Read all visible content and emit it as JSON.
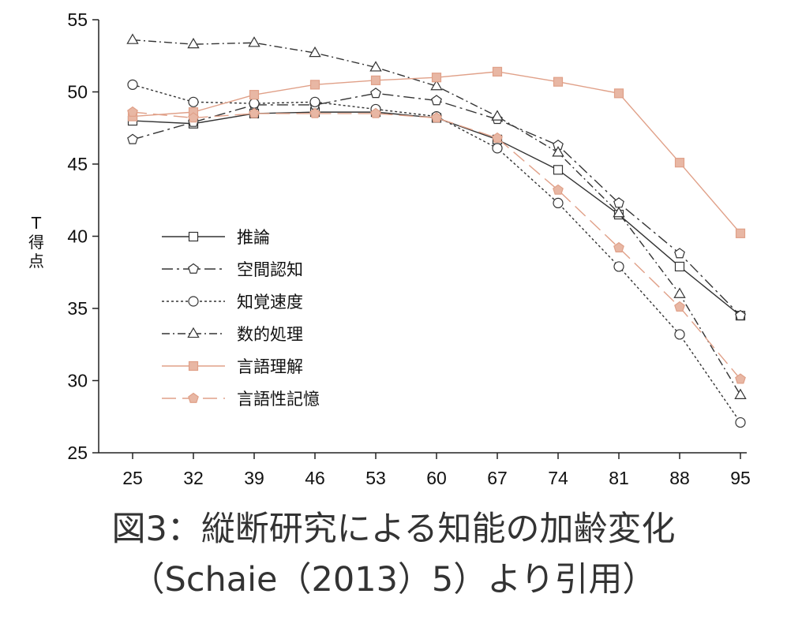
{
  "caption": {
    "line1": "図3：縦断研究による知能の加齢変化",
    "line2": "（Schaie（2013）5）より引用）"
  },
  "chart_data": {
    "type": "line",
    "ylabel": "T得点",
    "ylabel_chars": [
      "T",
      "得",
      "点"
    ],
    "xlabel": "",
    "x": [
      25,
      32,
      39,
      46,
      53,
      60,
      67,
      74,
      81,
      88,
      95
    ],
    "yticks": [
      25,
      30,
      35,
      40,
      45,
      50,
      55
    ],
    "ylim": [
      25,
      55
    ],
    "grid": false,
    "legend_position": "left-center",
    "series": [
      {
        "name": "推論",
        "marker": "square",
        "color": "#333333",
        "fill": "#ffffff",
        "dash": "",
        "values": [
          48.0,
          47.8,
          48.5,
          48.6,
          48.6,
          48.2,
          46.7,
          44.6,
          41.5,
          37.9,
          34.5
        ]
      },
      {
        "name": "空間認知",
        "marker": "pentagon",
        "color": "#333333",
        "fill": "#ffffff",
        "dash": "14,5,3,5",
        "values": [
          46.7,
          47.9,
          49.1,
          49.1,
          49.9,
          49.4,
          48.1,
          46.3,
          42.3,
          38.8,
          34.5
        ]
      },
      {
        "name": "知覚速度",
        "marker": "circle",
        "color": "#333333",
        "fill": "#ffffff",
        "dash": "3,3",
        "values": [
          50.5,
          49.3,
          49.2,
          49.3,
          48.8,
          48.3,
          46.1,
          42.3,
          37.9,
          33.2,
          27.1
        ]
      },
      {
        "name": "数的処理",
        "marker": "triangle",
        "color": "#333333",
        "fill": "#ffffff",
        "dash": "10,4,2,4",
        "values": [
          53.6,
          53.3,
          53.4,
          52.7,
          51.7,
          50.4,
          48.3,
          45.8,
          41.6,
          36.0,
          29.0
        ]
      },
      {
        "name": "言語理解",
        "marker": "square",
        "color": "#e0a088",
        "fill": "#e8b7a4",
        "dash": "",
        "values": [
          48.3,
          48.6,
          49.8,
          50.5,
          50.8,
          51.0,
          51.4,
          50.7,
          49.9,
          45.1,
          40.2
        ]
      },
      {
        "name": "言語性記憶",
        "marker": "pentagon",
        "color": "#e0a088",
        "fill": "#e8b7a4",
        "dash": "18,8",
        "values": [
          48.6,
          48.2,
          48.5,
          48.5,
          48.5,
          48.2,
          46.8,
          43.2,
          39.2,
          35.1,
          30.1
        ]
      }
    ]
  }
}
